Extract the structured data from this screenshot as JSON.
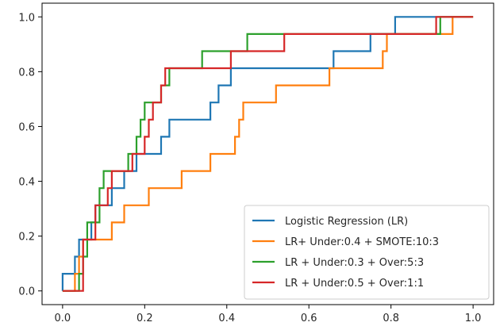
{
  "chart_data": {
    "type": "line",
    "step": true,
    "grid": false,
    "legend_position": "bottom-right",
    "xlim": [
      -0.05,
      1.05
    ],
    "ylim": [
      -0.05,
      1.05
    ],
    "xticks": [
      0.0,
      0.2,
      0.4,
      0.6,
      0.8,
      1.0
    ],
    "yticks": [
      0.0,
      0.2,
      0.4,
      0.6,
      0.8,
      1.0
    ],
    "xtick_labels": [
      "0.0",
      "0.2",
      "0.4",
      "0.6",
      "0.8",
      "1.0"
    ],
    "ytick_labels": [
      "0.0",
      "0.2",
      "0.4",
      "0.6",
      "0.8",
      "1.0"
    ],
    "series": [
      {
        "name": "Logistic Regression (LR)",
        "color": "#1f77b4",
        "points": [
          [
            0.0,
            0.0
          ],
          [
            0.0,
            0.0625
          ],
          [
            0.03,
            0.0625
          ],
          [
            0.03,
            0.125
          ],
          [
            0.04,
            0.125
          ],
          [
            0.04,
            0.1875
          ],
          [
            0.07,
            0.1875
          ],
          [
            0.07,
            0.25
          ],
          [
            0.08,
            0.25
          ],
          [
            0.08,
            0.3125
          ],
          [
            0.12,
            0.3125
          ],
          [
            0.12,
            0.375
          ],
          [
            0.15,
            0.375
          ],
          [
            0.15,
            0.4375
          ],
          [
            0.18,
            0.4375
          ],
          [
            0.18,
            0.5
          ],
          [
            0.24,
            0.5
          ],
          [
            0.24,
            0.5625
          ],
          [
            0.26,
            0.5625
          ],
          [
            0.26,
            0.625
          ],
          [
            0.36,
            0.625
          ],
          [
            0.36,
            0.6875
          ],
          [
            0.38,
            0.6875
          ],
          [
            0.38,
            0.75
          ],
          [
            0.41,
            0.75
          ],
          [
            0.41,
            0.8125
          ],
          [
            0.66,
            0.8125
          ],
          [
            0.66,
            0.875
          ],
          [
            0.75,
            0.875
          ],
          [
            0.75,
            0.9375
          ],
          [
            0.81,
            0.9375
          ],
          [
            0.81,
            1.0
          ],
          [
            1.0,
            1.0
          ]
        ]
      },
      {
        "name": "LR+ Under:0.4 + SMOTE:10:3",
        "color": "#ff7f0e",
        "points": [
          [
            0.0,
            0.0
          ],
          [
            0.03,
            0.0
          ],
          [
            0.03,
            0.0625
          ],
          [
            0.04,
            0.0625
          ],
          [
            0.04,
            0.125
          ],
          [
            0.05,
            0.125
          ],
          [
            0.05,
            0.1875
          ],
          [
            0.12,
            0.1875
          ],
          [
            0.12,
            0.25
          ],
          [
            0.15,
            0.25
          ],
          [
            0.15,
            0.3125
          ],
          [
            0.21,
            0.3125
          ],
          [
            0.21,
            0.375
          ],
          [
            0.29,
            0.375
          ],
          [
            0.29,
            0.4375
          ],
          [
            0.36,
            0.4375
          ],
          [
            0.36,
            0.5
          ],
          [
            0.42,
            0.5
          ],
          [
            0.42,
            0.5625
          ],
          [
            0.43,
            0.5625
          ],
          [
            0.43,
            0.625
          ],
          [
            0.44,
            0.625
          ],
          [
            0.44,
            0.6875
          ],
          [
            0.52,
            0.6875
          ],
          [
            0.52,
            0.75
          ],
          [
            0.65,
            0.75
          ],
          [
            0.65,
            0.8125
          ],
          [
            0.78,
            0.8125
          ],
          [
            0.78,
            0.875
          ],
          [
            0.79,
            0.875
          ],
          [
            0.79,
            0.9375
          ],
          [
            0.95,
            0.9375
          ],
          [
            0.95,
            1.0
          ],
          [
            1.0,
            1.0
          ]
        ]
      },
      {
        "name": "LR + Under:0.3 + Over:5:3",
        "color": "#2ca02c",
        "points": [
          [
            0.0,
            0.0
          ],
          [
            0.04,
            0.0
          ],
          [
            0.04,
            0.0625
          ],
          [
            0.05,
            0.0625
          ],
          [
            0.05,
            0.125
          ],
          [
            0.06,
            0.125
          ],
          [
            0.06,
            0.25
          ],
          [
            0.09,
            0.25
          ],
          [
            0.09,
            0.375
          ],
          [
            0.1,
            0.375
          ],
          [
            0.1,
            0.4375
          ],
          [
            0.16,
            0.4375
          ],
          [
            0.16,
            0.5
          ],
          [
            0.18,
            0.5
          ],
          [
            0.18,
            0.5625
          ],
          [
            0.19,
            0.5625
          ],
          [
            0.19,
            0.625
          ],
          [
            0.2,
            0.625
          ],
          [
            0.2,
            0.6875
          ],
          [
            0.24,
            0.6875
          ],
          [
            0.24,
            0.75
          ],
          [
            0.26,
            0.75
          ],
          [
            0.26,
            0.8125
          ],
          [
            0.34,
            0.8125
          ],
          [
            0.34,
            0.875
          ],
          [
            0.45,
            0.875
          ],
          [
            0.45,
            0.9375
          ],
          [
            0.92,
            0.9375
          ],
          [
            0.92,
            1.0
          ],
          [
            1.0,
            1.0
          ]
        ]
      },
      {
        "name": "LR + Under:0.5 + Over:1:1",
        "color": "#d62728",
        "points": [
          [
            0.0,
            0.0
          ],
          [
            0.05,
            0.0
          ],
          [
            0.05,
            0.1875
          ],
          [
            0.08,
            0.1875
          ],
          [
            0.08,
            0.3125
          ],
          [
            0.11,
            0.3125
          ],
          [
            0.11,
            0.375
          ],
          [
            0.12,
            0.375
          ],
          [
            0.12,
            0.4375
          ],
          [
            0.17,
            0.4375
          ],
          [
            0.17,
            0.5
          ],
          [
            0.2,
            0.5
          ],
          [
            0.2,
            0.5625
          ],
          [
            0.21,
            0.5625
          ],
          [
            0.21,
            0.625
          ],
          [
            0.22,
            0.625
          ],
          [
            0.22,
            0.6875
          ],
          [
            0.24,
            0.6875
          ],
          [
            0.24,
            0.75
          ],
          [
            0.25,
            0.75
          ],
          [
            0.25,
            0.8125
          ],
          [
            0.41,
            0.8125
          ],
          [
            0.41,
            0.875
          ],
          [
            0.54,
            0.875
          ],
          [
            0.54,
            0.9375
          ],
          [
            0.91,
            0.9375
          ],
          [
            0.91,
            1.0
          ],
          [
            1.0,
            1.0
          ]
        ]
      }
    ]
  }
}
